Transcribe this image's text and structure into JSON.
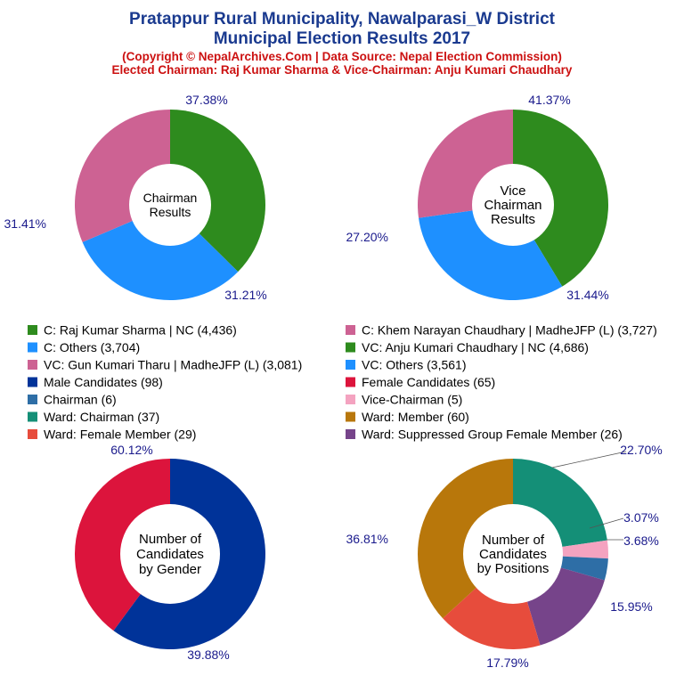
{
  "header": {
    "title_line1": "Pratappur Rural Municipality, Nawalparasi_W District",
    "title_line2": "Municipal Election Results 2017",
    "subtitle_line1": "(Copyright © NepalArchives.Com | Data Source: Nepal Election Commission)",
    "subtitle_line2": "Elected Chairman: Raj Kumar Sharma & Vice-Chairman: Anju Kumari Chaudhary"
  },
  "legend": [
    {
      "label": "C: Raj Kumar Sharma | NC (4,436)",
      "color": "#2e8b1e"
    },
    {
      "label": "C: Khem Narayan Chaudhary | MadheJFP (L) (3,727)",
      "color": "#cd6293"
    },
    {
      "label": "C: Others (3,704)",
      "color": "#1e90ff"
    },
    {
      "label": "VC: Anju Kumari Chaudhary | NC (4,686)",
      "color": "#2e8b1e"
    },
    {
      "label": "VC: Gun Kumari Tharu | MadheJFP (L) (3,081)",
      "color": "#cd6293"
    },
    {
      "label": "VC: Others (3,561)",
      "color": "#1e90ff"
    },
    {
      "label": "Male Candidates (98)",
      "color": "#003399"
    },
    {
      "label": "Female Candidates (65)",
      "color": "#dc143c"
    },
    {
      "label": "Chairman (6)",
      "color": "#2e6ea6"
    },
    {
      "label": "Vice-Chairman (5)",
      "color": "#f4a3c0"
    },
    {
      "label": "Ward: Chairman (37)",
      "color": "#148f77"
    },
    {
      "label": "Ward: Member (60)",
      "color": "#b8770b"
    },
    {
      "label": "Ward: Female Member (29)",
      "color": "#e74c3c"
    },
    {
      "label": "Ward: Suppressed Group Female Member (26)",
      "color": "#76448a"
    }
  ],
  "chart_data": [
    {
      "type": "pie",
      "center_label": [
        "Chairman",
        "Results"
      ],
      "slices": [
        {
          "value": 4436,
          "pct_label": "37.38%",
          "color": "#2e8b1e"
        },
        {
          "value": 3704,
          "pct_label": "31.21%",
          "color": "#1e90ff"
        },
        {
          "value": 3727,
          "pct_label": "31.41%",
          "color": "#cd6293"
        }
      ]
    },
    {
      "type": "pie",
      "center_label": [
        "Vice",
        "Chairman",
        "Results"
      ],
      "slices": [
        {
          "value": 4686,
          "pct_label": "41.37%",
          "color": "#2e8b1e"
        },
        {
          "value": 3561,
          "pct_label": "31.44%",
          "color": "#1e90ff"
        },
        {
          "value": 3081,
          "pct_label": "27.20%",
          "color": "#cd6293"
        }
      ]
    },
    {
      "type": "pie",
      "center_label": [
        "Number of",
        "Candidates",
        "by Gender"
      ],
      "slices": [
        {
          "value": 98,
          "pct_label": "60.12%",
          "color": "#003399"
        },
        {
          "value": 65,
          "pct_label": "39.88%",
          "color": "#dc143c"
        }
      ]
    },
    {
      "type": "pie",
      "center_label": [
        "Number of",
        "Candidates",
        "by Positions"
      ],
      "slices": [
        {
          "value": 37,
          "pct_label": "22.70%",
          "color": "#148f77"
        },
        {
          "value": 5,
          "pct_label": "3.07%",
          "color": "#f4a3c0"
        },
        {
          "value": 6,
          "pct_label": "3.68%",
          "color": "#2e6ea6"
        },
        {
          "value": 26,
          "pct_label": "15.95%",
          "color": "#76448a"
        },
        {
          "value": 29,
          "pct_label": "17.79%",
          "color": "#e74c3c"
        },
        {
          "value": 60,
          "pct_label": "36.81%",
          "color": "#b8770b"
        }
      ]
    }
  ]
}
